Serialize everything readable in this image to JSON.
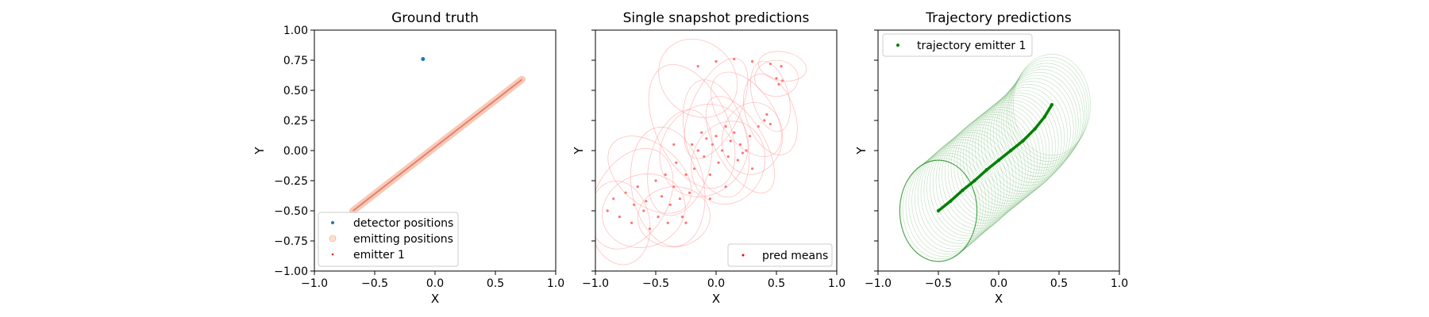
{
  "chart_data": [
    {
      "type": "scatter",
      "title": "Ground truth",
      "xlabel": "X",
      "ylabel": "Y",
      "xlim": [
        -1.0,
        1.0
      ],
      "ylim": [
        -1.0,
        1.0
      ],
      "xticks": [
        "−1.0",
        "−0.5",
        "0.0",
        "0.5",
        "1.0"
      ],
      "yticks": [
        "1.00",
        "0.75",
        "0.50",
        "0.25",
        "0.00",
        "−0.25",
        "−0.50",
        "−0.75",
        "−1.00"
      ],
      "legend_position": "lower-left",
      "series": [
        {
          "name": "detector positions",
          "kind": "points",
          "color": "#1f77b4",
          "points": [
            [
              -0.1,
              0.76
            ]
          ]
        },
        {
          "name": "emitting positions",
          "kind": "line-band",
          "color": "#f4a582",
          "from": [
            -0.68,
            -0.5
          ],
          "to": [
            0.72,
            0.59
          ]
        },
        {
          "name": "emitter 1",
          "kind": "line",
          "color": "#d62728",
          "from": [
            -0.68,
            -0.5
          ],
          "to": [
            0.72,
            0.59
          ]
        }
      ]
    },
    {
      "type": "scatter",
      "title": "Single snapshot predictions",
      "xlabel": "X",
      "ylabel": "Y",
      "xlim": [
        -1.0,
        1.0
      ],
      "ylim": [
        -1.0,
        1.0
      ],
      "xticks": [
        "−1.0",
        "−0.5",
        "0.0",
        "0.5",
        "1.0"
      ],
      "legend_position": "lower-right",
      "series": [
        {
          "name": "pred means",
          "kind": "points",
          "color": "#ff0000",
          "points": [
            [
              -0.9,
              -0.5
            ],
            [
              -0.85,
              -0.4
            ],
            [
              -0.8,
              -0.55
            ],
            [
              -0.75,
              -0.35
            ],
            [
              -0.7,
              -0.6
            ],
            [
              -0.68,
              -0.45
            ],
            [
              -0.65,
              -0.3
            ],
            [
              -0.6,
              -0.5
            ],
            [
              -0.58,
              -0.42
            ],
            [
              -0.55,
              -0.65
            ],
            [
              -0.5,
              -0.25
            ],
            [
              -0.48,
              -0.55
            ],
            [
              -0.45,
              -0.38
            ],
            [
              -0.42,
              -0.2
            ],
            [
              -0.4,
              -0.6
            ],
            [
              -0.38,
              -0.45
            ],
            [
              -0.35,
              -0.3
            ],
            [
              -0.33,
              -0.1
            ],
            [
              -0.3,
              -0.4
            ],
            [
              -0.28,
              -0.55
            ],
            [
              -0.25,
              -0.2
            ],
            [
              -0.22,
              -0.35
            ],
            [
              -0.2,
              0.05
            ],
            [
              -0.18,
              -0.15
            ],
            [
              -0.15,
              0.0
            ],
            [
              -0.12,
              0.15
            ],
            [
              -0.1,
              -0.05
            ],
            [
              -0.08,
              0.1
            ],
            [
              -0.05,
              -0.2
            ],
            [
              -0.03,
              0.05
            ],
            [
              0.0,
              0.12
            ],
            [
              0.02,
              -0.1
            ],
            [
              0.05,
              0.0
            ],
            [
              0.08,
              0.2
            ],
            [
              0.1,
              -0.05
            ],
            [
              0.12,
              0.08
            ],
            [
              0.15,
              0.15
            ],
            [
              0.18,
              -0.08
            ],
            [
              0.2,
              0.05
            ],
            [
              0.22,
              -0.02
            ],
            [
              0.25,
              0.0
            ],
            [
              0.28,
              0.12
            ],
            [
              0.3,
              -0.15
            ],
            [
              0.35,
              0.2
            ],
            [
              0.4,
              0.25
            ],
            [
              0.42,
              0.3
            ],
            [
              0.45,
              0.22
            ],
            [
              0.5,
              0.6
            ],
            [
              0.52,
              0.55
            ],
            [
              0.54,
              0.7
            ],
            [
              0.55,
              0.58
            ],
            [
              -0.15,
              0.7
            ],
            [
              0.0,
              0.74
            ],
            [
              0.15,
              0.76
            ],
            [
              0.3,
              0.74
            ],
            [
              0.45,
              0.72
            ],
            [
              -0.25,
              -0.6
            ],
            [
              -0.05,
              -0.4
            ],
            [
              0.08,
              -0.3
            ],
            [
              -0.35,
              0.05
            ]
          ]
        },
        {
          "name": "",
          "kind": "ellipses",
          "color": "#ff9999",
          "ellipses": [
            [
              -0.7,
              -0.4,
              0.3,
              0.45,
              -30
            ],
            [
              -0.6,
              -0.5,
              0.35,
              0.3,
              20
            ],
            [
              -0.4,
              -0.3,
              0.3,
              0.5,
              10
            ],
            [
              -0.3,
              -0.1,
              0.25,
              0.45,
              -15
            ],
            [
              -0.2,
              0.2,
              0.3,
              0.55,
              25
            ],
            [
              -0.1,
              0.0,
              0.35,
              0.4,
              -35
            ],
            [
              0.0,
              0.1,
              0.25,
              0.5,
              15
            ],
            [
              0.1,
              -0.1,
              0.3,
              0.35,
              -20
            ],
            [
              0.2,
              0.05,
              0.2,
              0.45,
              30
            ],
            [
              0.3,
              0.1,
              0.25,
              0.3,
              -10
            ],
            [
              0.45,
              0.3,
              0.2,
              0.35,
              20
            ],
            [
              0.5,
              0.6,
              0.18,
              0.15,
              0
            ],
            [
              0.55,
              0.7,
              0.2,
              0.12,
              -10
            ],
            [
              0.45,
              0.45,
              0.15,
              0.3,
              15
            ],
            [
              -0.55,
              -0.2,
              0.4,
              0.25,
              -40
            ],
            [
              -0.8,
              -0.6,
              0.25,
              0.35,
              10
            ],
            [
              -0.15,
              0.6,
              0.3,
              0.35,
              45
            ],
            [
              0.0,
              0.35,
              0.2,
              0.45,
              -25
            ],
            [
              -0.35,
              -0.55,
              0.3,
              0.25,
              5
            ],
            [
              0.25,
              0.3,
              0.22,
              0.4,
              35
            ]
          ]
        }
      ]
    },
    {
      "type": "scatter",
      "title": "Trajectory predictions",
      "xlabel": "X",
      "ylabel": "Y",
      "xlim": [
        -1.0,
        1.0
      ],
      "ylim": [
        -1.0,
        1.0
      ],
      "xticks": [
        "−1.0",
        "−0.5",
        "0.0",
        "0.5",
        "1.0"
      ],
      "legend_position": "upper-left",
      "series": [
        {
          "name": "trajectory emitter 1",
          "kind": "trajectory",
          "color": "#008000",
          "points": [
            [
              -0.5,
              -0.5
            ],
            [
              -0.4,
              -0.42
            ],
            [
              -0.3,
              -0.33
            ],
            [
              -0.2,
              -0.25
            ],
            [
              -0.1,
              -0.16
            ],
            [
              0.0,
              -0.08
            ],
            [
              0.1,
              0.0
            ],
            [
              0.2,
              0.08
            ],
            [
              0.3,
              0.18
            ],
            [
              0.38,
              0.28
            ],
            [
              0.44,
              0.38
            ]
          ],
          "start_radii": [
            0.32,
            0.42
          ],
          "end_radii": [
            0.32,
            0.42
          ]
        }
      ]
    }
  ]
}
